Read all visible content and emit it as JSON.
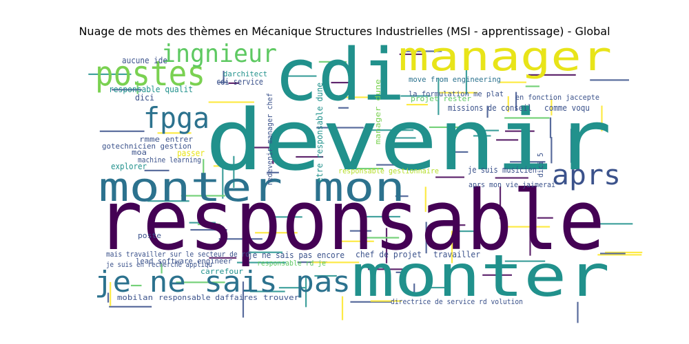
{
  "title": "Nuage de mots des thèmes en Mécanique Structures Industrielles (MSI - apprentissage) - Global",
  "palette": [
    "#440154",
    "#3b528b",
    "#21918c",
    "#5ec962",
    "#fde725"
  ],
  "chart_data": {
    "type": "wordcloud",
    "title": "Nuage de mots des thèmes en Mécanique Structures Industrielles (MSI - apprentissage) - Global",
    "words": [
      {
        "text": "responsable",
        "color": "#440154"
      },
      {
        "text": "devenir",
        "color": "#21918c"
      },
      {
        "text": "monter",
        "color": "#21918c"
      },
      {
        "text": "cdi",
        "color": "#21918c"
      },
      {
        "text": "manager",
        "color": "#e8e419"
      },
      {
        "text": "monter mon",
        "color": "#2c728e"
      },
      {
        "text": "je ne sais pas",
        "color": "#2c728e"
      },
      {
        "text": "postes",
        "color": "#7ad151"
      },
      {
        "text": "ingnieur",
        "color": "#5ec962"
      },
      {
        "text": "fpga",
        "color": "#2c728e"
      },
      {
        "text": "aprs",
        "color": "#3b528b"
      },
      {
        "text": "move from engineering",
        "color": "#2c728e"
      },
      {
        "text": "la formulation me plat",
        "color": "#3b528b"
      },
      {
        "text": "en fonction jaccepte",
        "color": "#3b528b"
      },
      {
        "text": "missions de conseil",
        "color": "#3b528b"
      },
      {
        "text": "comme voqu",
        "color": "#3b528b"
      },
      {
        "text": "responsable qualit",
        "color": "#21918c"
      },
      {
        "text": "cdi service",
        "color": "#3b528b"
      },
      {
        "text": "darchitect",
        "color": "#21918c"
      },
      {
        "text": "dici",
        "color": "#3b528b"
      },
      {
        "text": "aucune ide",
        "color": "#3b528b"
      },
      {
        "text": "rmme",
        "color": "#3b528b"
      },
      {
        "text": "entrer",
        "color": "#3b528b"
      },
      {
        "text": "gotechnicien gestion",
        "color": "#3b528b"
      },
      {
        "text": "moa",
        "color": "#3b528b"
      },
      {
        "text": "passer",
        "color": "#e8e419"
      },
      {
        "text": "machine learning",
        "color": "#3b528b"
      },
      {
        "text": "explorer",
        "color": "#21918c"
      },
      {
        "text": "redevenir manager chef",
        "color": "#3b528b"
      },
      {
        "text": "etre responsable dune",
        "color": "#21918c"
      },
      {
        "text": "manager dune",
        "color": "#7ad151"
      },
      {
        "text": "responsable gestionnaire",
        "color": "#b5de2b"
      },
      {
        "text": "je suis musicien",
        "color": "#3b528b"
      },
      {
        "text": "aprs mon vie jaimerai",
        "color": "#3b528b"
      },
      {
        "text": "dici 5",
        "color": "#3b528b"
      },
      {
        "text": "projet rester",
        "color": "#5ec962"
      },
      {
        "text": "poste",
        "color": "#3b528b"
      },
      {
        "text": "mais travailler sur le secteur de rd",
        "color": "#3b528b"
      },
      {
        "text": "je suis en recherche appliqu",
        "color": "#3b528b"
      },
      {
        "text": "lead software engineer",
        "color": "#3b528b"
      },
      {
        "text": "carrefour",
        "color": "#21918c"
      },
      {
        "text": "je ne sais pas encore",
        "color": "#3b528b"
      },
      {
        "text": "chef de projet",
        "color": "#3b528b"
      },
      {
        "text": "travailler",
        "color": "#3b528b"
      },
      {
        "text": "responsable rd je",
        "color": "#5ec962"
      },
      {
        "text": "mobilan",
        "color": "#3b528b"
      },
      {
        "text": "responsable daffaires",
        "color": "#3b528b"
      },
      {
        "text": "trouver",
        "color": "#3b528b"
      },
      {
        "text": "directrice de service rd volution",
        "color": "#3b528b"
      }
    ]
  }
}
